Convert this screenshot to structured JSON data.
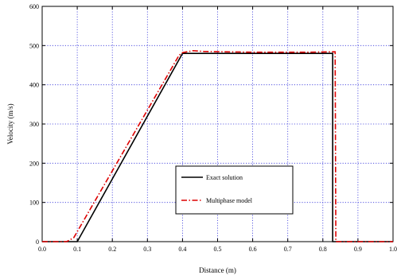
{
  "chart_data": {
    "type": "line",
    "title": "",
    "xlabel": "Distance (m)",
    "ylabel": "Velocity (m/s)",
    "xlim": [
      0.0,
      1.0
    ],
    "ylim": [
      0,
      600
    ],
    "x_ticks": [
      0.0,
      0.1,
      0.2,
      0.3,
      0.4,
      0.5,
      0.6,
      0.7,
      0.8,
      0.9,
      1.0
    ],
    "x_tick_labels": [
      "0.0",
      "0.1",
      "0.2",
      "0.3",
      "0.4",
      "0.5",
      "0.6",
      "0.7",
      "0.8",
      "0.9",
      "1.0"
    ],
    "y_ticks": [
      0,
      100,
      200,
      300,
      400,
      500,
      600
    ],
    "y_tick_labels": [
      "0",
      "100",
      "200",
      "300",
      "400",
      "500",
      "600"
    ],
    "grid": true,
    "legend_placement": "center-right",
    "series": [
      {
        "name": "Exact solution",
        "color": "#000000",
        "line_style": "solid",
        "points": [
          [
            0.0,
            0
          ],
          [
            0.1,
            0
          ],
          [
            0.4,
            480
          ],
          [
            0.828,
            480
          ],
          [
            0.828,
            0
          ],
          [
            1.0,
            0
          ]
        ]
      },
      {
        "name": "Multiphase model",
        "color": "#dd0000",
        "line_style": "dash-dot",
        "points": [
          [
            0.0,
            0
          ],
          [
            0.07,
            0
          ],
          [
            0.09,
            10
          ],
          [
            0.39,
            475
          ],
          [
            0.4,
            482
          ],
          [
            0.43,
            487
          ],
          [
            0.46,
            485
          ],
          [
            0.6,
            483
          ],
          [
            0.75,
            483
          ],
          [
            0.82,
            484
          ],
          [
            0.835,
            484
          ],
          [
            0.837,
            0
          ],
          [
            1.0,
            0
          ]
        ]
      }
    ]
  },
  "colors": {
    "grid": "#3a3adc",
    "axis": "#000000"
  }
}
